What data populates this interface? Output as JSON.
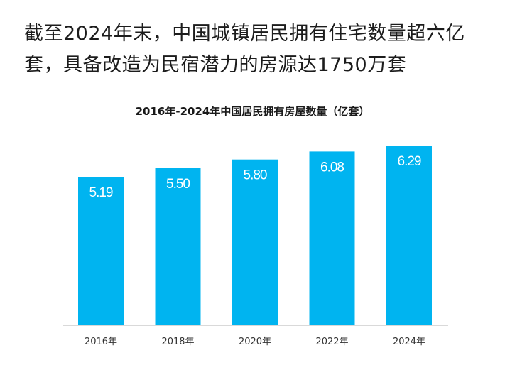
{
  "headline": "截至2024年末，中国城镇居民拥有住宅数量超六亿套，具备改造为民宿潜力的房源达1750万套",
  "colors": {
    "bar": "#00b4f0",
    "baseline": "#d9d9d9",
    "value_text": "#ffffff"
  },
  "chart_data": {
    "type": "bar",
    "title": "2016年-2024年中国居民拥有房屋数量（亿套）",
    "xlabel": "",
    "ylabel": "",
    "categories": [
      "2016年",
      "2018年",
      "2020年",
      "2022年",
      "2024年"
    ],
    "values": [
      5.19,
      5.5,
      5.8,
      6.08,
      6.29
    ],
    "value_labels": [
      "5.19",
      "5.50",
      "5.80",
      "6.08",
      "6.29"
    ],
    "ylim": [
      0,
      6.29
    ],
    "grid": false,
    "legend": "none"
  }
}
